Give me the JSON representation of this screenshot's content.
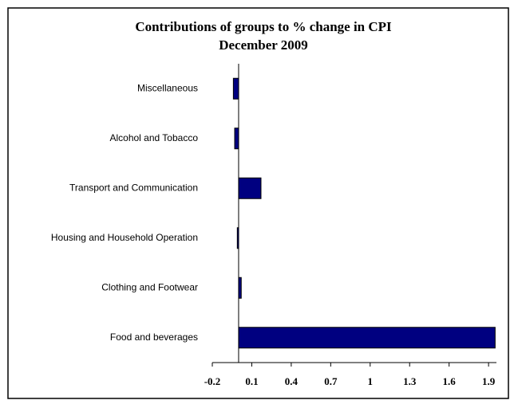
{
  "chart_data": {
    "type": "bar",
    "orientation": "horizontal",
    "title": "Contributions of groups to % change in CPI",
    "subtitle": "December 2009",
    "categories": [
      "Miscellaneous",
      "Alcohol and Tobacco",
      "Transport and Communication",
      "Housing and Household Operation",
      "Clothing and Footwear",
      "Food and beverages"
    ],
    "values": [
      -0.04,
      -0.03,
      0.17,
      -0.01,
      0.02,
      1.95
    ],
    "color": "#000080",
    "xlim": [
      -0.2,
      1.96
    ],
    "xticks": [
      -0.2,
      0.1,
      0.4,
      0.7,
      1,
      1.3,
      1.6,
      1.9
    ],
    "grid": false
  }
}
